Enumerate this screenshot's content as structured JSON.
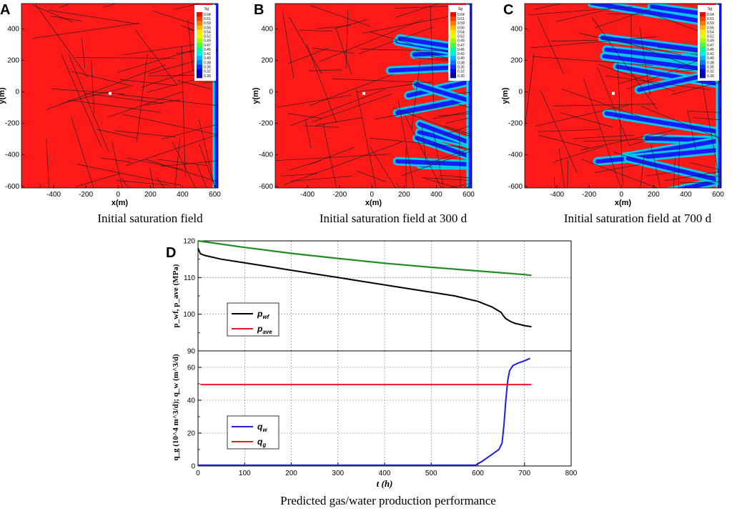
{
  "figure": {
    "panels": [
      {
        "letter": "A",
        "caption": "Initial saturation field",
        "front_depth": 0.05,
        "seed": 11
      },
      {
        "letter": "B",
        "caption": "Initial saturation field at 300 d",
        "front_depth": 0.42,
        "seed": 23
      },
      {
        "letter": "C",
        "caption": "Initial saturation field at 700 d",
        "front_depth": 0.72,
        "seed": 37
      }
    ],
    "panel_d_letter": "D",
    "panel_d_caption": "Predicted gas/water production performance"
  },
  "saturation_maps": {
    "x_axis": {
      "label": "x(m)",
      "ticks": [
        -400,
        -200,
        0,
        200,
        400,
        600
      ],
      "range": [
        -600,
        620
      ]
    },
    "y_axis": {
      "label": "y(m)",
      "ticks": [
        -600,
        -400,
        -200,
        0,
        200,
        400
      ],
      "range": [
        -610,
        560
      ]
    },
    "colorbar": {
      "title": "Sg",
      "levels": [
        "0.64",
        "0.61",
        "0.59",
        "0.56",
        "0.54",
        "0.52",
        "0.49",
        "0.47",
        "0.45",
        "0.42",
        "0.40",
        "0.38",
        "0.35",
        "0.32",
        "0.30"
      ],
      "colors": [
        "#ff0000",
        "#ff3c00",
        "#ff7800",
        "#ffb400",
        "#ffe600",
        "#e6ff00",
        "#a0ff00",
        "#50ff40",
        "#00ff96",
        "#00f0e6",
        "#00b4ff",
        "#0078ff",
        "#0032ff",
        "#0000dc",
        "#0000a0"
      ]
    },
    "colors": {
      "gas": "#ff1a1a",
      "water": "#1a1aff",
      "fracture": "#1a1a1a",
      "well": "#ffffff"
    }
  },
  "chart_data": [
    {
      "type": "line",
      "name": "pressure",
      "ylabel": "p_wf, p_ave (MPa)",
      "ylim": [
        90,
        120
      ],
      "xlim": [
        0,
        800
      ],
      "yticks": [
        90,
        100,
        110,
        120
      ],
      "grid": true,
      "legend_position": "left",
      "series": [
        {
          "name": "p_wf",
          "label_main": "p",
          "label_sub": "wf",
          "color": "#000000",
          "x": [
            0,
            5,
            15,
            50,
            100,
            150,
            200,
            250,
            300,
            350,
            400,
            450,
            500,
            550,
            600,
            630,
            650,
            655,
            660,
            670,
            680,
            690,
            700,
            715
          ],
          "y": [
            118,
            116.5,
            116,
            115,
            114,
            113,
            112,
            111,
            110,
            109,
            108,
            107,
            106,
            105,
            103.5,
            102,
            100.5,
            99.5,
            98.8,
            98,
            97.5,
            97.2,
            96.9,
            96.6
          ]
        },
        {
          "name": "p_ave",
          "label_main": "p",
          "label_sub": "ave",
          "color": "#d42020",
          "legend_only": true
        }
      ],
      "overlay_series": [
        {
          "name": "p_ave (plotted)",
          "color": "#228b22",
          "x": [
            0,
            100,
            200,
            300,
            400,
            500,
            600,
            700,
            715
          ],
          "y": [
            120,
            118.2,
            116.6,
            115.2,
            113.9,
            112.8,
            111.8,
            110.8,
            110.6
          ]
        }
      ]
    },
    {
      "type": "line",
      "name": "production",
      "ylabel": "q_g (10^4 m^3/d); q_w (m^3/d)",
      "xlabel": "t (h)",
      "ylim": [
        0,
        70
      ],
      "xlim": [
        0,
        800
      ],
      "xticks": [
        0,
        100,
        200,
        300,
        400,
        500,
        600,
        700,
        800
      ],
      "yticks": [
        0,
        20,
        40,
        60
      ],
      "grid": true,
      "legend_position": "bottom-left",
      "series": [
        {
          "name": "q_w",
          "label_main": "q",
          "label_sub": "w",
          "color": "#1f1fdd",
          "x": [
            0,
            100,
            200,
            300,
            400,
            500,
            595,
            610,
            630,
            645,
            652,
            656,
            660,
            664,
            668,
            675,
            685,
            700,
            712
          ],
          "y": [
            0.5,
            0.5,
            0.5,
            0.5,
            0.5,
            0.5,
            0.5,
            3,
            7,
            10,
            14,
            25,
            40,
            52,
            58,
            61,
            62.5,
            64,
            65.5
          ]
        },
        {
          "name": "q_g",
          "label_main": "q",
          "label_sub": "g",
          "color": "#e02020",
          "x": [
            5,
            715
          ],
          "y": [
            49.5,
            49.5
          ]
        }
      ]
    }
  ]
}
